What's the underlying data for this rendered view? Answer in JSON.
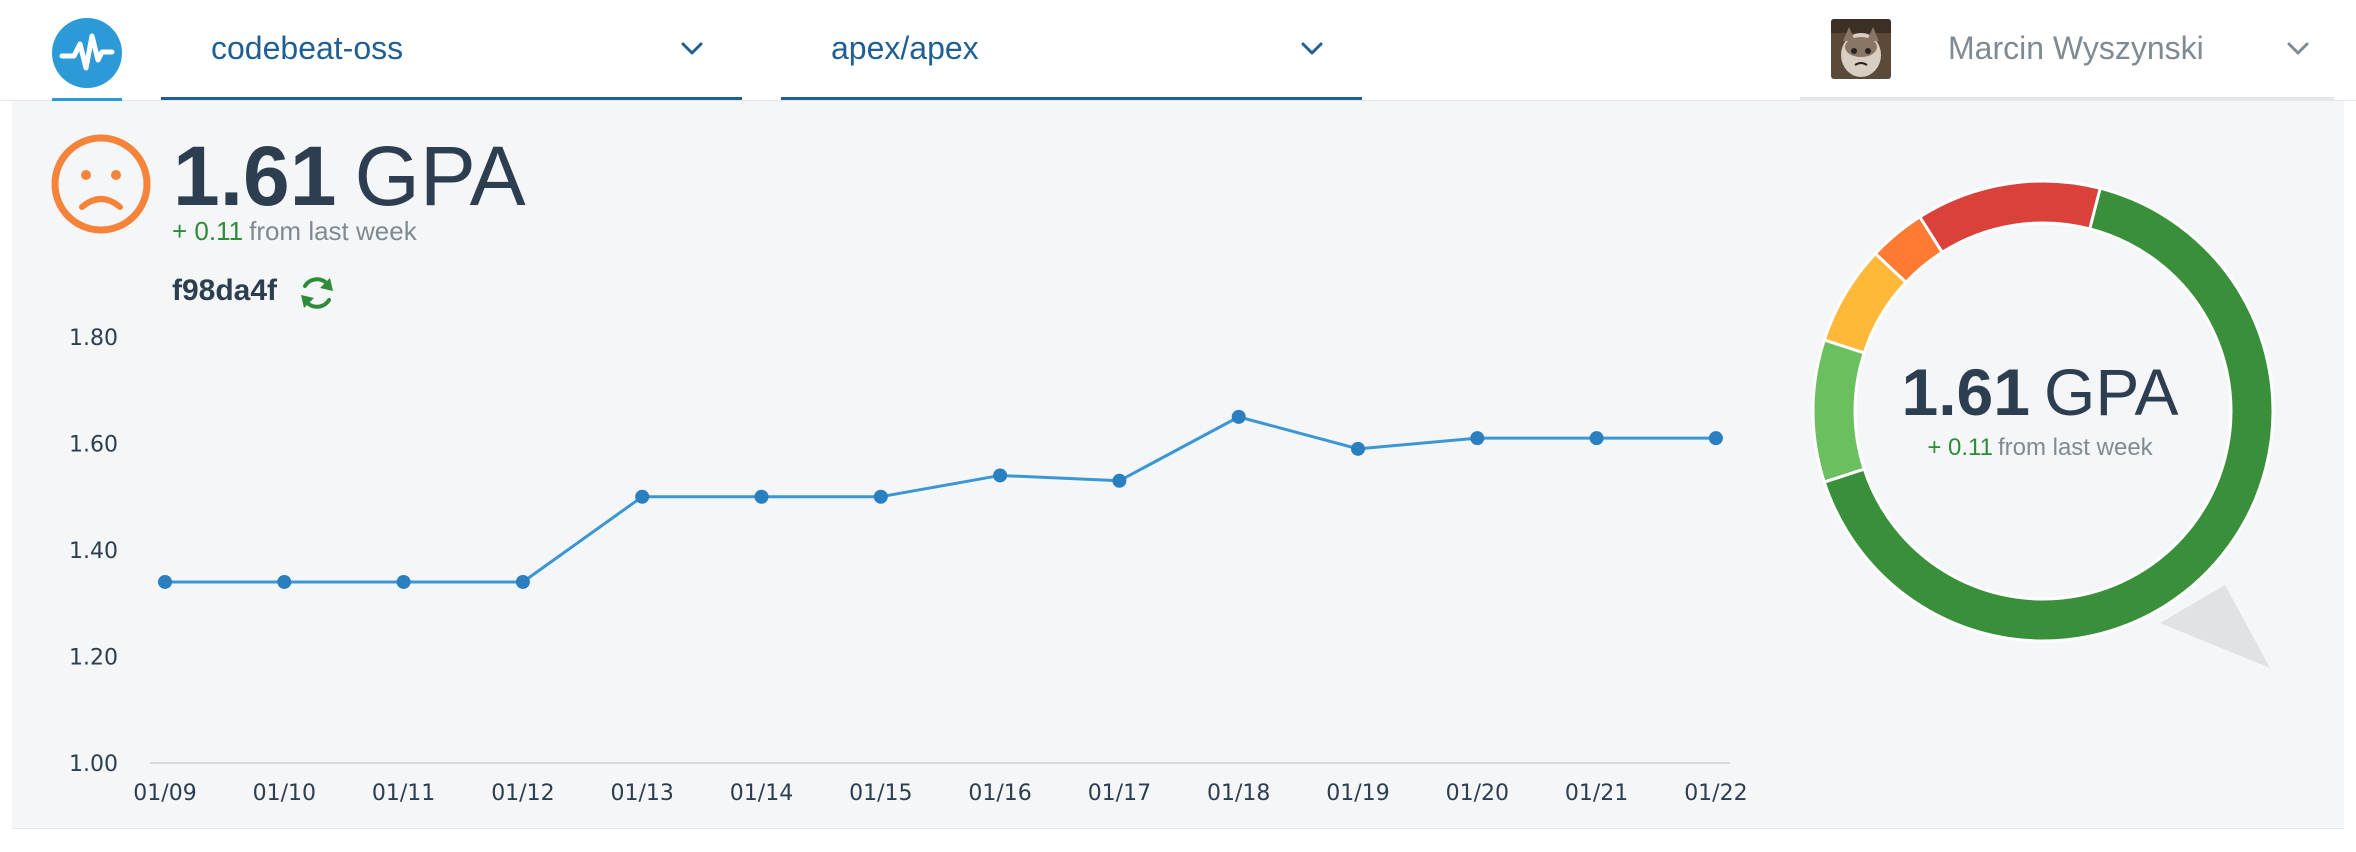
{
  "header": {
    "org_select": {
      "value": "codebeat-oss"
    },
    "repo_select": {
      "value": "apex/apex"
    },
    "user": {
      "name": "Marcin Wyszynski"
    }
  },
  "summary": {
    "gpa_value": "1.61",
    "gpa_unit": "GPA",
    "delta": "+ 0.11",
    "delta_suffix": "from last week",
    "commit": "f98da4f",
    "mood_icon": "sad-face-icon"
  },
  "donut": {
    "gpa_value": "1.61",
    "gpa_unit": "GPA",
    "delta": "+ 0.11",
    "delta_suffix": "from last week",
    "segments": [
      {
        "color": "#3a8f3a",
        "fraction": 0.7
      },
      {
        "color": "#6abf5e",
        "fraction": 0.1
      },
      {
        "color": "#ffb83a",
        "fraction": 0.07
      },
      {
        "color": "#ff7a33",
        "fraction": 0.04
      },
      {
        "color": "#d9413a",
        "fraction": 0.13
      }
    ]
  },
  "colors": {
    "accent": "#2d9ad8",
    "link": "#1f5f94",
    "positive": "#2e8b3a",
    "sad": "#f5843a"
  },
  "chart_data": {
    "type": "line",
    "categories": [
      "01/09",
      "01/10",
      "01/11",
      "01/12",
      "01/13",
      "01/14",
      "01/15",
      "01/16",
      "01/17",
      "01/18",
      "01/19",
      "01/20",
      "01/21",
      "01/22"
    ],
    "values": [
      1.34,
      1.34,
      1.34,
      1.34,
      1.5,
      1.5,
      1.5,
      1.54,
      1.53,
      1.65,
      1.59,
      1.61,
      1.61,
      1.61
    ],
    "y_ticks": [
      "1.80",
      "1.60",
      "1.40",
      "1.20",
      "1.00"
    ],
    "ylim": [
      1.0,
      1.8
    ],
    "grid": false,
    "color": "#3a97d4"
  }
}
